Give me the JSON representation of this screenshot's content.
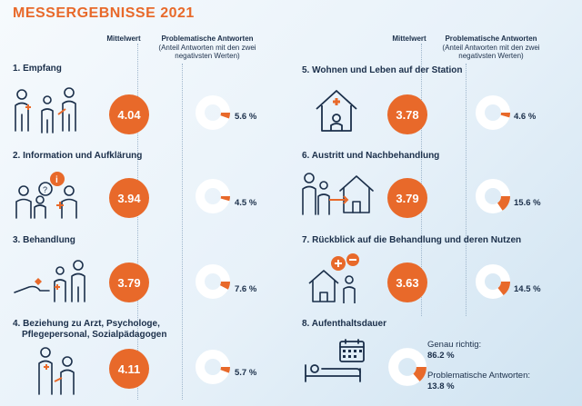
{
  "title": "MESSERGEBNISSE 2021",
  "headers": {
    "mean": "Mittelwert",
    "problem": "Problematische Antworten",
    "problem_sub": "(Anteil Antworten mit den zwei negativsten Werten)"
  },
  "colors": {
    "accent": "#e8692a",
    "navy": "#1b2f4a",
    "ring": "#ffffff"
  },
  "sections": [
    {
      "title": "1. Empfang",
      "mean": "4.04",
      "pct_label": "5.6 %",
      "pct": 5.6,
      "icon": "reception-people-icon"
    },
    {
      "title": "2. Information und Aufklärung",
      "mean": "3.94",
      "pct_label": "4.5 %",
      "pct": 4.5,
      "icon": "information-dialog-icon"
    },
    {
      "title": "3. Behandlung",
      "mean": "3.79",
      "pct_label": "7.6 %",
      "pct": 7.6,
      "icon": "treatment-hand-icon"
    },
    {
      "title": "4. Beziehung zu Arzt, Psychologe,",
      "title2": "Pflegepersonal, Sozialpädagogen",
      "mean": "4.11",
      "pct_label": "5.7 %",
      "pct": 5.7,
      "icon": "relationship-people-icon"
    },
    {
      "title": "5. Wohnen und Leben auf der Station",
      "mean": "3.78",
      "pct_label": "4.6 %",
      "pct": 4.6,
      "icon": "house-cross-icon"
    },
    {
      "title": "6. Austritt und Nachbehandlung",
      "mean": "3.79",
      "pct_label": "15.6 %",
      "pct": 15.6,
      "icon": "discharge-house-icon"
    },
    {
      "title": "7. Rückblick auf die Behandlung und deren Nutzen",
      "mean": "3.63",
      "pct_label": "14.5 %",
      "pct": 14.5,
      "icon": "review-plus-minus-icon"
    }
  ],
  "stay": {
    "title": "8. Aufenthaltsdauer",
    "icon": "bed-calendar-icon",
    "correct_label": "Genau richtig:",
    "correct_value": "86.2 %",
    "correct_pct": 86.2,
    "problem_label": "Problematische Antworten:",
    "problem_value": "13.8 %",
    "problem_pct": 13.8
  }
}
